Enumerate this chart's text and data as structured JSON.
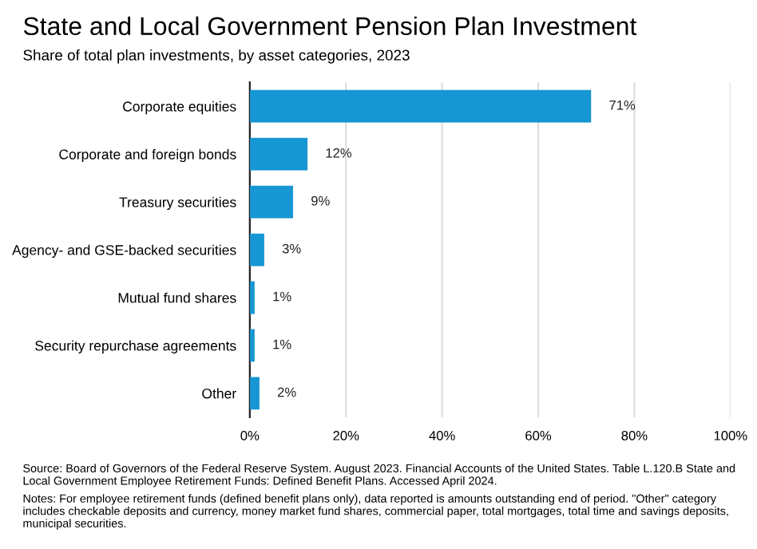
{
  "chart_data": {
    "type": "bar",
    "orientation": "horizontal",
    "title": "State and Local Government Pension Plan Investment",
    "subtitle": "Share of total plan investments, by asset categories, 2023",
    "categories": [
      "Corporate equities",
      "Corporate and foreign bonds",
      "Treasury securities",
      "Agency- and GSE-backed securities",
      "Mutual fund shares",
      "Security repurchase agreements",
      "Other"
    ],
    "values": [
      71,
      12,
      9,
      3,
      1,
      1,
      2
    ],
    "value_labels": [
      "71%",
      "12%",
      "9%",
      "3%",
      "1%",
      "1%",
      "2%"
    ],
    "color": "#1696d2",
    "xlim": [
      0,
      100
    ],
    "xticks": [
      {
        "value": 0,
        "label": "0%"
      },
      {
        "value": 20,
        "label": "20%"
      },
      {
        "value": 40,
        "label": "40%"
      },
      {
        "value": 60,
        "label": "60%"
      },
      {
        "value": 80,
        "label": "80%"
      },
      {
        "value": 100,
        "label": "100%"
      }
    ],
    "grid": "x",
    "annotations": [
      "Source: Board of Governors of the Federal Reserve System. August 2023. Financial Accounts of the United States. Table L.120.B State and Local Government Employee Retirement Funds: Defined Benefit Plans. Accessed April 2024.",
      "Notes: For employee retirement funds (defined benefit plans only), data reported is amounts outstanding end of period. \"Other\" category includes checkable deposits and currency, money market fund shares, commercial paper, total mortgages, total time and savings deposits, municipal securities."
    ]
  }
}
